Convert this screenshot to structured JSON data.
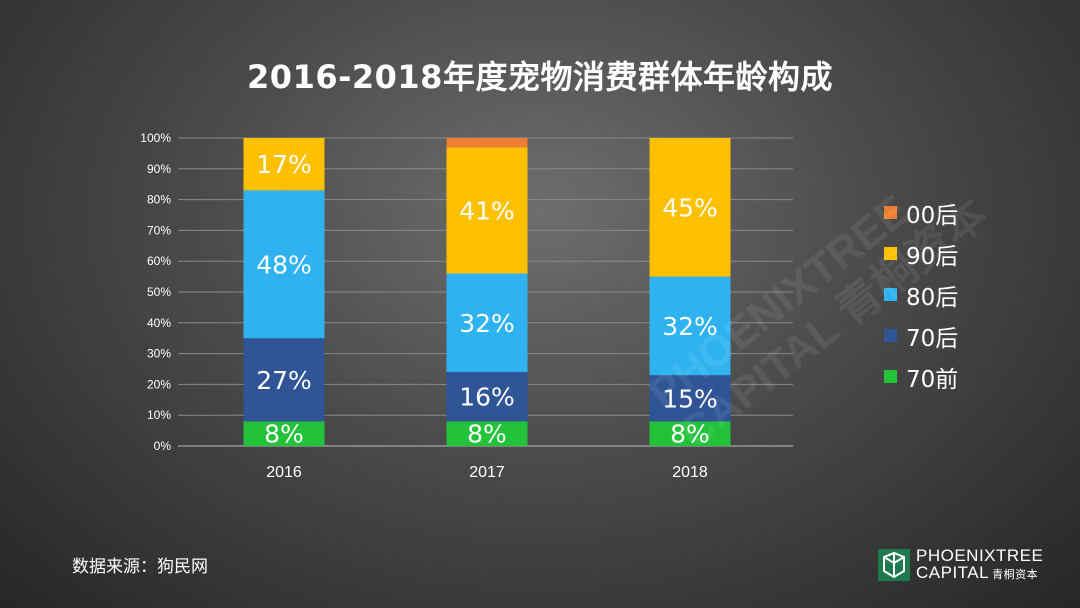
{
  "title": "2016-2018年度宠物消费群体年龄构成",
  "source_text": "数据来源：狗民网",
  "logo": {
    "line1": "PHOENIXTREE",
    "line2": "CAPITAL",
    "cn": "青桐资本"
  },
  "watermark": {
    "line1": "PHOENIXTREE",
    "line2": "CAPITAL 青桐资本"
  },
  "colors": {
    "00后": "#ED7D31",
    "90后": "#FFC000",
    "80后": "#2FB3F0",
    "70后": "#2F5597",
    "70前": "#22C33A",
    "logo": "#1E7A4E"
  },
  "legend": [
    "00后",
    "90后",
    "80后",
    "70后",
    "70前"
  ],
  "chart_data": {
    "type": "bar",
    "stacked": true,
    "title": "2016-2018年度宠物消费群体年龄构成",
    "categories": [
      "2016",
      "2017",
      "2018"
    ],
    "y_ticks": [
      "0%",
      "10%",
      "20%",
      "30%",
      "40%",
      "50%",
      "60%",
      "70%",
      "80%",
      "90%",
      "100%"
    ],
    "ylim": [
      0,
      100
    ],
    "grid": true,
    "legend_position": "right",
    "series": [
      {
        "name": "70前",
        "values": [
          8,
          8,
          8
        ],
        "labels": [
          "8%",
          "8%",
          "8%"
        ]
      },
      {
        "name": "70后",
        "values": [
          27,
          16,
          15
        ],
        "labels": [
          "27%",
          "16%",
          "15%"
        ]
      },
      {
        "name": "80后",
        "values": [
          48,
          32,
          32
        ],
        "labels": [
          "48%",
          "32%",
          "32%"
        ]
      },
      {
        "name": "90后",
        "values": [
          17,
          41,
          45
        ],
        "labels": [
          "17%",
          "41%",
          "45%"
        ]
      },
      {
        "name": "00后",
        "values": [
          0,
          3,
          0
        ],
        "labels": [
          "",
          "",
          ""
        ]
      }
    ]
  }
}
